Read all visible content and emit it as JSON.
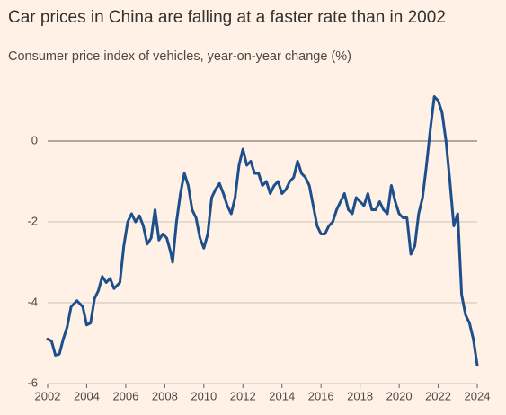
{
  "chart_data": {
    "type": "line",
    "title": "Car prices in China are falling at a faster rate than in 2002",
    "subtitle": "Consumer price index of vehicles, year-on-year change (%)",
    "color": "#1d4f8c",
    "grid": true,
    "xlim": [
      2002,
      2024
    ],
    "xticks": [
      2002,
      2004,
      2006,
      2008,
      2010,
      2012,
      2014,
      2016,
      2018,
      2020,
      2022,
      2024
    ],
    "ylim": [
      -6,
      1.4
    ],
    "yticks": [
      -6,
      -4,
      -2,
      0
    ],
    "x": [
      2002.0,
      2002.2,
      2002.4,
      2002.6,
      2002.8,
      2003.0,
      2003.2,
      2003.5,
      2003.8,
      2004.0,
      2004.2,
      2004.4,
      2004.6,
      2004.8,
      2005.0,
      2005.2,
      2005.4,
      2005.7,
      2005.9,
      2006.1,
      2006.3,
      2006.5,
      2006.7,
      2006.9,
      2007.1,
      2007.3,
      2007.5,
      2007.7,
      2007.9,
      2008.1,
      2008.3,
      2008.4,
      2008.6,
      2008.8,
      2009.0,
      2009.2,
      2009.4,
      2009.6,
      2009.8,
      2010.0,
      2010.2,
      2010.4,
      2010.6,
      2010.8,
      2011.0,
      2011.2,
      2011.4,
      2011.6,
      2011.8,
      2012.0,
      2012.2,
      2012.4,
      2012.6,
      2012.8,
      2013.0,
      2013.2,
      2013.4,
      2013.6,
      2013.8,
      2014.0,
      2014.2,
      2014.4,
      2014.6,
      2014.8,
      2015.0,
      2015.2,
      2015.4,
      2015.6,
      2015.8,
      2016.0,
      2016.2,
      2016.4,
      2016.6,
      2016.8,
      2017.0,
      2017.2,
      2017.4,
      2017.6,
      2017.8,
      2018.0,
      2018.2,
      2018.4,
      2018.6,
      2018.8,
      2019.0,
      2019.2,
      2019.4,
      2019.6,
      2019.8,
      2020.0,
      2020.2,
      2020.4,
      2020.6,
      2020.8,
      2021.0,
      2021.2,
      2021.4,
      2021.6,
      2021.8,
      2022.0,
      2022.2,
      2022.4,
      2022.6,
      2022.8,
      2023.0,
      2023.2,
      2023.4,
      2023.6,
      2023.8,
      2024.0
    ],
    "values": [
      -4.9,
      -4.95,
      -5.3,
      -5.27,
      -4.9,
      -4.6,
      -4.1,
      -3.95,
      -4.1,
      -4.55,
      -4.5,
      -3.9,
      -3.7,
      -3.35,
      -3.5,
      -3.4,
      -3.65,
      -3.5,
      -2.6,
      -2.0,
      -1.8,
      -2.0,
      -1.85,
      -2.1,
      -2.55,
      -2.4,
      -1.7,
      -2.45,
      -2.3,
      -2.4,
      -2.75,
      -3.0,
      -2.0,
      -1.3,
      -0.8,
      -1.1,
      -1.7,
      -1.9,
      -2.4,
      -2.65,
      -2.3,
      -1.4,
      -1.2,
      -1.05,
      -1.3,
      -1.6,
      -1.8,
      -1.4,
      -0.6,
      -0.2,
      -0.6,
      -0.5,
      -0.8,
      -0.8,
      -1.1,
      -1.0,
      -1.3,
      -1.1,
      -1.0,
      -1.3,
      -1.2,
      -1.0,
      -0.9,
      -0.5,
      -0.8,
      -0.9,
      -1.1,
      -1.6,
      -2.1,
      -2.3,
      -2.3,
      -2.1,
      -2.0,
      -1.7,
      -1.5,
      -1.3,
      -1.7,
      -1.8,
      -1.4,
      -1.5,
      -1.6,
      -1.3,
      -1.7,
      -1.7,
      -1.5,
      -1.7,
      -1.8,
      -1.1,
      -1.5,
      -1.8,
      -1.9,
      -1.9,
      -2.8,
      -2.6,
      -1.8,
      -1.4,
      -0.6,
      0.3,
      1.1,
      1.0,
      0.7,
      0.0,
      -1.0,
      -2.1,
      -1.8,
      -3.8,
      -4.3,
      -4.5,
      -4.9,
      -5.55
    ]
  }
}
